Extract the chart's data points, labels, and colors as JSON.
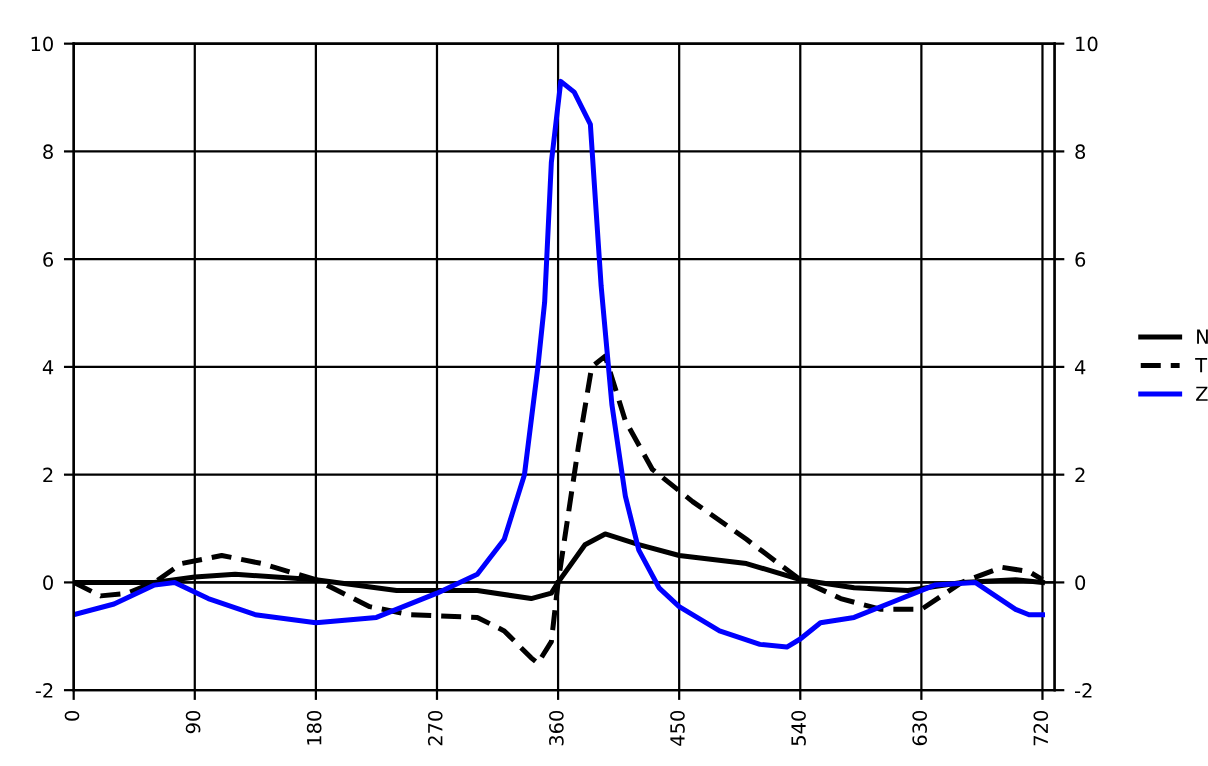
{
  "chart_data": {
    "type": "line",
    "xlim": [
      0,
      729
    ],
    "xticks": [
      0,
      90,
      180,
      270,
      360,
      450,
      540,
      630,
      720
    ],
    "ylim": [
      -2,
      10
    ],
    "yticks": [
      -2,
      0,
      2,
      4,
      6,
      8,
      10
    ],
    "y2lim": [
      -2,
      10
    ],
    "y2ticks": [
      -2,
      0,
      2,
      4,
      6,
      8,
      10
    ],
    "grid": true,
    "legend": "right",
    "marker": "none",
    "series": [
      {
        "name": "N",
        "color": "#000000",
        "line_style": "solid",
        "x": [
          0,
          60,
          90,
          120,
          180,
          240,
          300,
          340,
          355,
          360,
          380,
          395,
          420,
          450,
          500,
          540,
          580,
          620,
          660,
          700,
          720
        ],
        "values": [
          0,
          0,
          0.1,
          0.15,
          0.05,
          -0.15,
          -0.15,
          -0.3,
          -0.2,
          0,
          0.7,
          0.9,
          0.7,
          0.5,
          0.35,
          0.05,
          -0.1,
          -0.15,
          0,
          0.05,
          0
        ]
      },
      {
        "name": "T",
        "color": "#000000",
        "line_style": "dashed",
        "x": [
          0,
          20,
          40,
          60,
          80,
          110,
          140,
          180,
          220,
          250,
          300,
          320,
          340,
          345,
          355,
          360,
          375,
          385,
          395,
          410,
          430,
          460,
          500,
          540,
          570,
          600,
          630,
          660,
          690,
          710,
          720
        ],
        "values": [
          0,
          -0.25,
          -0.2,
          0,
          0.35,
          0.5,
          0.35,
          0.05,
          -0.45,
          -0.6,
          -0.65,
          -0.9,
          -1.4,
          -1.5,
          -1.1,
          0,
          2.5,
          4.0,
          4.2,
          3.0,
          2.1,
          1.5,
          0.8,
          0.05,
          -0.3,
          -0.5,
          -0.5,
          0,
          0.28,
          0.2,
          0.05
        ]
      },
      {
        "name": "Z",
        "color": "#0000ff",
        "line_style": "solid",
        "x": [
          0,
          30,
          60,
          75,
          100,
          135,
          180,
          225,
          270,
          300,
          320,
          335,
          345,
          350,
          355,
          362,
          372,
          384,
          392,
          400,
          410,
          420,
          435,
          450,
          480,
          510,
          530,
          540,
          555,
          580,
          610,
          640,
          670,
          700,
          710,
          720
        ],
        "values": [
          -0.6,
          -0.4,
          -0.05,
          0,
          -0.3,
          -0.6,
          -0.75,
          -0.65,
          -0.2,
          0.15,
          0.8,
          2.0,
          4.0,
          5.2,
          7.8,
          9.3,
          9.1,
          8.5,
          5.5,
          3.3,
          1.6,
          0.6,
          -0.1,
          -0.45,
          -0.9,
          -1.15,
          -1.2,
          -1.05,
          -0.75,
          -0.65,
          -0.35,
          -0.05,
          0,
          -0.5,
          -0.6,
          -0.6
        ]
      }
    ]
  }
}
